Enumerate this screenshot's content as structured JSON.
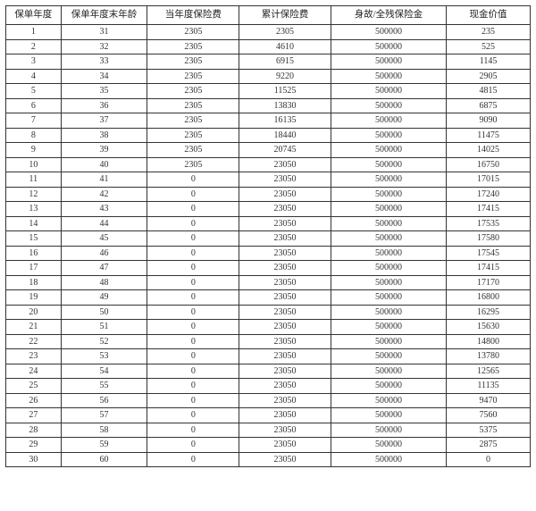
{
  "table": {
    "type": "table",
    "background_color": "#ffffff",
    "border_color": "#333333",
    "text_color": "#333333",
    "header_fontsize_pt": 8,
    "body_fontsize_pt": 7.5,
    "font_family": "SimSun",
    "columns": [
      {
        "label": "保单年度",
        "width_pct": 10.5,
        "align": "center"
      },
      {
        "label": "保单年度末年龄",
        "width_pct": 16.5,
        "align": "center"
      },
      {
        "label": "当年度保险费",
        "width_pct": 17.5,
        "align": "center"
      },
      {
        "label": "累计保险费",
        "width_pct": 17.5,
        "align": "center"
      },
      {
        "label": "身故/全残保险金",
        "width_pct": 22.0,
        "align": "center"
      },
      {
        "label": "现金价值",
        "width_pct": 16.0,
        "align": "center"
      }
    ],
    "rows": [
      [
        1,
        31,
        2305,
        2305,
        500000,
        235
      ],
      [
        2,
        32,
        2305,
        4610,
        500000,
        525
      ],
      [
        3,
        33,
        2305,
        6915,
        500000,
        1145
      ],
      [
        4,
        34,
        2305,
        9220,
        500000,
        2905
      ],
      [
        5,
        35,
        2305,
        11525,
        500000,
        4815
      ],
      [
        6,
        36,
        2305,
        13830,
        500000,
        6875
      ],
      [
        7,
        37,
        2305,
        16135,
        500000,
        9090
      ],
      [
        8,
        38,
        2305,
        18440,
        500000,
        11475
      ],
      [
        9,
        39,
        2305,
        20745,
        500000,
        14025
      ],
      [
        10,
        40,
        2305,
        23050,
        500000,
        16750
      ],
      [
        11,
        41,
        0,
        23050,
        500000,
        17015
      ],
      [
        12,
        42,
        0,
        23050,
        500000,
        17240
      ],
      [
        13,
        43,
        0,
        23050,
        500000,
        17415
      ],
      [
        14,
        44,
        0,
        23050,
        500000,
        17535
      ],
      [
        15,
        45,
        0,
        23050,
        500000,
        17580
      ],
      [
        16,
        46,
        0,
        23050,
        500000,
        17545
      ],
      [
        17,
        47,
        0,
        23050,
        500000,
        17415
      ],
      [
        18,
        48,
        0,
        23050,
        500000,
        17170
      ],
      [
        19,
        49,
        0,
        23050,
        500000,
        16800
      ],
      [
        20,
        50,
        0,
        23050,
        500000,
        16295
      ],
      [
        21,
        51,
        0,
        23050,
        500000,
        15630
      ],
      [
        22,
        52,
        0,
        23050,
        500000,
        14800
      ],
      [
        23,
        53,
        0,
        23050,
        500000,
        13780
      ],
      [
        24,
        54,
        0,
        23050,
        500000,
        12565
      ],
      [
        25,
        55,
        0,
        23050,
        500000,
        11135
      ],
      [
        26,
        56,
        0,
        23050,
        500000,
        9470
      ],
      [
        27,
        57,
        0,
        23050,
        500000,
        7560
      ],
      [
        28,
        58,
        0,
        23050,
        500000,
        5375
      ],
      [
        29,
        59,
        0,
        23050,
        500000,
        2875
      ],
      [
        30,
        60,
        0,
        23050,
        500000,
        0
      ]
    ]
  }
}
